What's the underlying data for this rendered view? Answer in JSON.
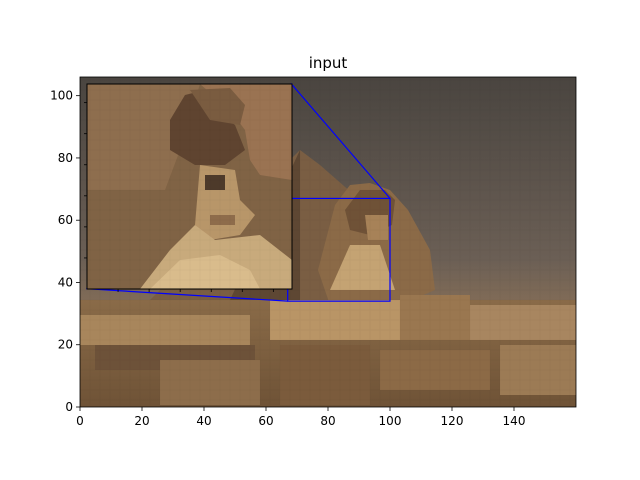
{
  "chart_data": {
    "type": "image",
    "title": "input",
    "xlabel": "",
    "ylabel": "",
    "xlim": [
      0,
      160
    ],
    "ylim": [
      0,
      106
    ],
    "x_ticks": [
      0,
      20,
      40,
      60,
      80,
      100,
      120,
      140
    ],
    "y_ticks": [
      0,
      20,
      40,
      60,
      80,
      100
    ],
    "zoom_region": {
      "x": [
        67,
        100
      ],
      "y": [
        34,
        67
      ]
    },
    "inset_axes_data_extent": {
      "x": [
        2,
        68
      ],
      "y": [
        38,
        104
      ]
    },
    "indicator_color": "#0000ff",
    "image_description": "pixelated photo of the Great Sphinx of Giza with a pyramid and ruins, sky at top"
  }
}
